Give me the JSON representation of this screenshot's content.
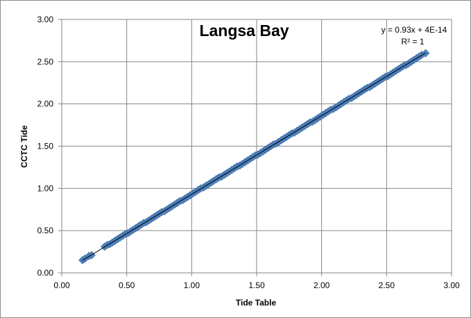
{
  "chart_data": {
    "type": "scatter",
    "title": "Langsa Bay",
    "xlabel": "Tide Table",
    "ylabel": "CCTC Tide",
    "xlim": [
      0.0,
      3.0
    ],
    "ylim": [
      0.0,
      3.0
    ],
    "xticks": [
      "0.00",
      "0.50",
      "1.00",
      "1.50",
      "2.00",
      "2.50",
      "3.00"
    ],
    "yticks": [
      "0.00",
      "0.50",
      "1.00",
      "1.50",
      "2.00",
      "2.50",
      "3.00"
    ],
    "grid": true,
    "legend": "none",
    "marker_color": "#4f81bd",
    "trendline_color": "#000000",
    "trendline": {
      "slope": 0.93,
      "intercept": 0,
      "equation": "y = 0.93x + 4E-14",
      "r2_label": "R² = 1"
    },
    "series": [
      {
        "x": [
          0.16,
          0.18,
          0.21,
          0.23,
          0.33,
          0.35,
          0.37,
          0.39,
          0.41,
          0.43,
          0.45,
          0.47,
          0.49,
          0.51,
          0.53,
          0.55,
          0.57,
          0.59,
          0.61,
          0.63,
          0.65,
          0.67,
          0.69,
          0.71,
          0.73,
          0.75,
          0.77,
          0.79,
          0.81,
          0.83,
          0.85,
          0.87,
          0.89,
          0.91,
          0.93,
          0.95,
          0.97,
          0.99,
          1.01,
          1.03,
          1.05,
          1.07,
          1.09,
          1.11,
          1.13,
          1.15,
          1.17,
          1.19,
          1.21,
          1.23,
          1.25,
          1.27,
          1.29,
          1.31,
          1.33,
          1.35,
          1.37,
          1.39,
          1.41,
          1.43,
          1.45,
          1.47,
          1.49,
          1.51,
          1.53,
          1.55,
          1.57,
          1.59,
          1.61,
          1.63,
          1.65,
          1.67,
          1.69,
          1.71,
          1.73,
          1.75,
          1.77,
          1.79,
          1.81,
          1.83,
          1.85,
          1.87,
          1.89,
          1.91,
          1.93,
          1.95,
          1.97,
          1.99,
          2.01,
          2.03,
          2.05,
          2.07,
          2.09,
          2.11,
          2.13,
          2.15,
          2.17,
          2.19,
          2.21,
          2.23,
          2.25,
          2.27,
          2.29,
          2.31,
          2.33,
          2.35,
          2.37,
          2.39,
          2.41,
          2.43,
          2.45,
          2.47,
          2.49,
          2.51,
          2.53,
          2.55,
          2.57,
          2.59,
          2.61,
          2.63,
          2.65,
          2.67,
          2.69,
          2.71,
          2.73,
          2.75,
          2.77,
          2.8
        ],
        "y": [
          0.15,
          0.17,
          0.2,
          0.21,
          0.31,
          0.33,
          0.34,
          0.36,
          0.38,
          0.4,
          0.42,
          0.44,
          0.46,
          0.47,
          0.49,
          0.51,
          0.53,
          0.55,
          0.57,
          0.59,
          0.6,
          0.62,
          0.64,
          0.66,
          0.68,
          0.7,
          0.72,
          0.73,
          0.75,
          0.77,
          0.79,
          0.81,
          0.83,
          0.85,
          0.86,
          0.88,
          0.9,
          0.92,
          0.94,
          0.96,
          0.98,
          1.0,
          1.01,
          1.03,
          1.05,
          1.07,
          1.09,
          1.11,
          1.13,
          1.14,
          1.16,
          1.18,
          1.2,
          1.22,
          1.24,
          1.26,
          1.27,
          1.29,
          1.31,
          1.33,
          1.35,
          1.37,
          1.39,
          1.4,
          1.42,
          1.44,
          1.46,
          1.48,
          1.5,
          1.52,
          1.53,
          1.55,
          1.57,
          1.59,
          1.61,
          1.63,
          1.65,
          1.66,
          1.68,
          1.7,
          1.72,
          1.74,
          1.76,
          1.78,
          1.79,
          1.81,
          1.83,
          1.85,
          1.87,
          1.89,
          1.91,
          1.93,
          1.94,
          1.96,
          1.98,
          2.0,
          2.02,
          2.04,
          2.06,
          2.07,
          2.09,
          2.11,
          2.13,
          2.15,
          2.17,
          2.19,
          2.2,
          2.22,
          2.24,
          2.26,
          2.28,
          2.3,
          2.32,
          2.33,
          2.35,
          2.37,
          2.39,
          2.41,
          2.43,
          2.45,
          2.46,
          2.48,
          2.5,
          2.52,
          2.54,
          2.56,
          2.58,
          2.6
        ]
      }
    ]
  }
}
